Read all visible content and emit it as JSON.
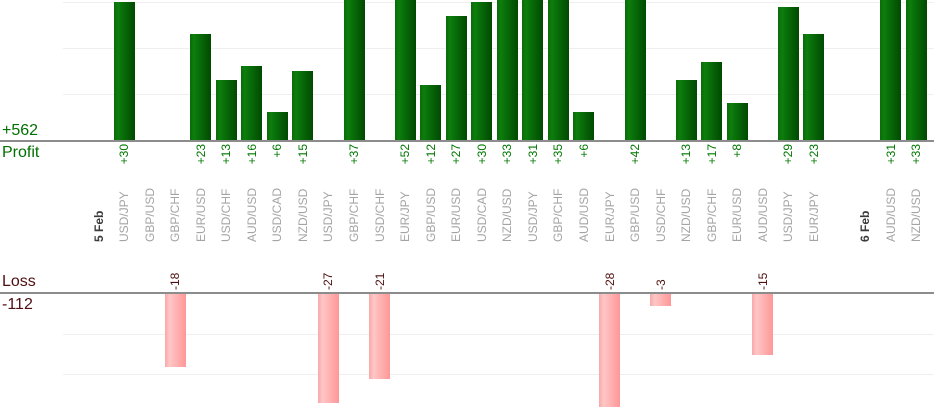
{
  "chart_data": {
    "type": "bar",
    "orientation": "vertical",
    "legend": "none",
    "grid": "horizontal, every 10 units, profit panel top clipped by viewport",
    "panels": {
      "profit": {
        "label": "Profit",
        "total": 562,
        "total_label": "+562",
        "gridline_interval": 10
      },
      "loss": {
        "label": "Loss",
        "total": -112,
        "total_label": "-112",
        "gridline_interval": 10
      }
    },
    "slots": [
      {
        "label": "5 Feb",
        "kind": "date"
      },
      {
        "label": "USD/JPY",
        "value": 30
      },
      {
        "label": "GBP/USD",
        "value": null
      },
      {
        "label": "GBP/CHF",
        "value": -18
      },
      {
        "label": "EUR/USD",
        "value": 23
      },
      {
        "label": "USD/CHF",
        "value": 13
      },
      {
        "label": "AUD/USD",
        "value": 16
      },
      {
        "label": "USD/CAD",
        "value": 6
      },
      {
        "label": "NZD/USD",
        "value": 15
      },
      {
        "label": "USD/JPY",
        "value": -27
      },
      {
        "label": "GBP/CHF",
        "value": 37
      },
      {
        "label": "USD/CHF",
        "value": -21
      },
      {
        "label": "EUR/JPY",
        "value": 52
      },
      {
        "label": "GBP/USD",
        "value": 12
      },
      {
        "label": "EUR/USD",
        "value": 27
      },
      {
        "label": "USD/CAD",
        "value": 30
      },
      {
        "label": "NZD/USD",
        "value": 33
      },
      {
        "label": "USD/JPY",
        "value": 31
      },
      {
        "label": "GBP/CHF",
        "value": 35
      },
      {
        "label": "AUD/USD",
        "value": 6
      },
      {
        "label": "EUR/JPY",
        "value": -28
      },
      {
        "label": "GBP/USD",
        "value": 42
      },
      {
        "label": "USD/CHF",
        "value": -3
      },
      {
        "label": "NZD/USD",
        "value": 13
      },
      {
        "label": "GBP/CHF",
        "value": 17
      },
      {
        "label": "EUR/USD",
        "value": 8
      },
      {
        "label": "AUD/USD",
        "value": -15
      },
      {
        "label": "USD/JPY",
        "value": 29
      },
      {
        "label": "EUR/JPY",
        "value": 23
      },
      {
        "kind": "spacer"
      },
      {
        "label": "6 Feb",
        "kind": "date"
      },
      {
        "label": "AUD/USD",
        "value": 31
      },
      {
        "label": "NZD/USD",
        "value": 33
      }
    ]
  },
  "colors": {
    "profit_text": "#007000",
    "profit_value_text": "#007700",
    "loss_text": "#4d0f0f",
    "bar_green_light": "#0c7e0c",
    "bar_green_edge": "#0b6b0b",
    "bar_green_dark": "#014901",
    "bar_pink_light": "#ffc6c6",
    "bar_pink_edge": "#f7a8a8",
    "bar_pink_dark": "#ff9797",
    "category_label": "#a4a4a4",
    "date_label": "#3b3b3b",
    "axis_line": "#8c8c8c",
    "gridline": "#efefef"
  }
}
